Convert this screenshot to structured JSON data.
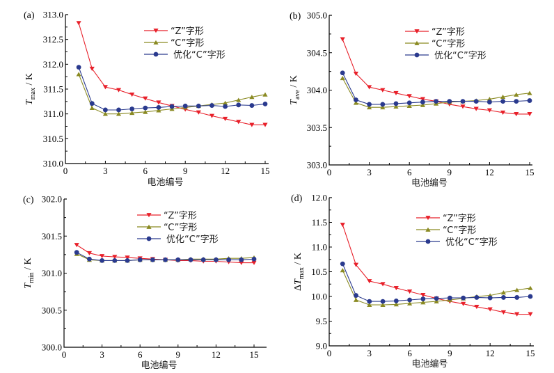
{
  "figure": {
    "legend_labels": [
      "“Z”字形",
      "“C”字形",
      "优化“C”字形"
    ],
    "series_colors": {
      "Z": "#e8202a",
      "C": "#8a8a22",
      "optC": "#2a3a8e"
    },
    "series_markers": {
      "Z": "triangle-down",
      "C": "triangle-up",
      "optC": "circle"
    }
  },
  "chart_data": [
    {
      "id": "a",
      "type": "line",
      "panel_label": "(a)",
      "title": "",
      "xlabel": "电池编号",
      "ylabel_main": "T",
      "ylabel_sub": "max",
      "ylabel_prefix": "",
      "ylabel_unit": " / K",
      "xlim": [
        0,
        16
      ],
      "ylim": [
        310.0,
        313.0
      ],
      "xticks": [
        0,
        3,
        6,
        9,
        12,
        15
      ],
      "xtick_labels": [
        "0",
        "3",
        "6",
        "9",
        "12",
        "15"
      ],
      "yticks": [
        310.0,
        310.5,
        311.0,
        311.5,
        312.0,
        312.5,
        313.0
      ],
      "ytick_labels": [
        "310.0",
        "310.5",
        "311.0",
        "311.5",
        "312.0",
        "312.5",
        "313.0"
      ],
      "grid": false,
      "legend_position": "top-right",
      "x": [
        1,
        2,
        3,
        4,
        5,
        6,
        7,
        8,
        9,
        10,
        11,
        12,
        13,
        14,
        15
      ],
      "series": [
        {
          "key": "Z",
          "name": "“Z”字形",
          "values": [
            312.83,
            311.91,
            311.54,
            311.48,
            311.39,
            311.31,
            311.23,
            311.16,
            311.09,
            311.03,
            310.96,
            310.9,
            310.84,
            310.78,
            310.78
          ]
        },
        {
          "key": "C",
          "name": "“C”字形",
          "values": [
            311.8,
            311.12,
            311.0,
            311.0,
            311.02,
            311.04,
            311.07,
            311.1,
            311.13,
            311.16,
            311.19,
            311.22,
            311.28,
            311.34,
            311.39
          ]
        },
        {
          "key": "optC",
          "name": "优化“C”字形",
          "values": [
            311.94,
            311.21,
            311.08,
            311.08,
            311.1,
            311.12,
            311.13,
            311.15,
            311.16,
            311.16,
            311.17,
            311.15,
            311.18,
            311.17,
            311.2
          ]
        }
      ]
    },
    {
      "id": "b",
      "type": "line",
      "panel_label": "(b)",
      "title": "",
      "xlabel": "电池编号",
      "ylabel_main": "T",
      "ylabel_sub": "ave",
      "ylabel_prefix": "",
      "ylabel_unit": " / K",
      "xlim": [
        0,
        15.2
      ],
      "ylim": [
        303.0,
        305.0
      ],
      "xticks": [
        0,
        3,
        6,
        9,
        12,
        15
      ],
      "xtick_labels": [
        "0",
        "3",
        "6",
        "9",
        "12",
        "15"
      ],
      "yticks": [
        303.0,
        303.5,
        304.0,
        304.5,
        305.0
      ],
      "ytick_labels": [
        "303.0",
        "303.5",
        "304.0",
        "304.5",
        "305.0"
      ],
      "grid": false,
      "legend_position": "top-right",
      "x": [
        1,
        2,
        3,
        4,
        5,
        6,
        7,
        8,
        9,
        10,
        11,
        12,
        13,
        14,
        15
      ],
      "series": [
        {
          "key": "Z",
          "name": "“Z”字形",
          "values": [
            304.68,
            304.22,
            304.04,
            304.0,
            303.96,
            303.92,
            303.88,
            303.85,
            303.81,
            303.78,
            303.75,
            303.73,
            303.7,
            303.68,
            303.68
          ]
        },
        {
          "key": "C",
          "name": "“C”字形",
          "values": [
            304.16,
            303.83,
            303.77,
            303.77,
            303.78,
            303.79,
            303.8,
            303.82,
            303.84,
            303.85,
            303.86,
            303.88,
            303.91,
            303.94,
            303.96
          ]
        },
        {
          "key": "optC",
          "name": "优化“C”字形",
          "values": [
            304.23,
            303.87,
            303.81,
            303.81,
            303.82,
            303.83,
            303.84,
            303.85,
            303.85,
            303.85,
            303.85,
            303.84,
            303.85,
            303.85,
            303.86
          ]
        }
      ]
    },
    {
      "id": "c",
      "type": "line",
      "panel_label": "(c)",
      "title": "",
      "xlabel": "电池编号",
      "ylabel_main": "T",
      "ylabel_sub": "min",
      "ylabel_prefix": "",
      "ylabel_unit": " / K",
      "xlim": [
        0,
        16
      ],
      "ylim": [
        300.0,
        302.0
      ],
      "xticks": [
        0,
        3,
        6,
        9,
        12,
        15
      ],
      "xtick_labels": [
        "0",
        "3",
        "6",
        "9",
        "12",
        "15"
      ],
      "yticks": [
        300.0,
        300.5,
        301.0,
        301.5,
        302.0
      ],
      "ytick_labels": [
        "300.0",
        "300.5",
        "301.0",
        "301.5",
        "302.0"
      ],
      "grid": false,
      "legend_position": "top-right",
      "x": [
        1,
        2,
        3,
        4,
        5,
        6,
        7,
        8,
        9,
        10,
        11,
        12,
        13,
        14,
        15
      ],
      "series": [
        {
          "key": "Z",
          "name": "“Z”字形",
          "values": [
            301.38,
            301.27,
            301.23,
            301.22,
            301.21,
            301.2,
            301.19,
            301.18,
            301.17,
            301.17,
            301.16,
            301.16,
            301.15,
            301.14,
            301.14
          ]
        },
        {
          "key": "C",
          "name": "“C”字形",
          "values": [
            301.26,
            301.18,
            301.17,
            301.17,
            301.17,
            301.18,
            301.18,
            301.18,
            301.18,
            301.19,
            301.19,
            301.19,
            301.2,
            301.2,
            301.21
          ]
        },
        {
          "key": "optC",
          "name": "优化“C”字形",
          "values": [
            301.28,
            301.19,
            301.17,
            301.17,
            301.17,
            301.18,
            301.18,
            301.18,
            301.18,
            301.18,
            301.18,
            301.18,
            301.18,
            301.18,
            301.19
          ]
        }
      ]
    },
    {
      "id": "d",
      "type": "line",
      "panel_label": "(d)",
      "title": "",
      "xlabel": "电池编号",
      "ylabel_main": "T",
      "ylabel_sub": "max",
      "ylabel_prefix": "Δ",
      "ylabel_unit": " / K",
      "xlim": [
        0,
        15.2
      ],
      "ylim": [
        9.0,
        12.0
      ],
      "xticks": [
        0,
        3,
        6,
        9,
        12,
        15
      ],
      "xtick_labels": [
        "0",
        "3",
        "6",
        "9",
        "12",
        "15"
      ],
      "yticks": [
        9.0,
        9.5,
        10.0,
        10.5,
        11.0,
        11.5,
        12.0
      ],
      "ytick_labels": [
        "9.0",
        "9.5",
        "10.0",
        "10.5",
        "11.0",
        "11.5",
        "12.0"
      ],
      "grid": false,
      "legend_position": "top-right",
      "x": [
        1,
        2,
        3,
        4,
        5,
        6,
        7,
        8,
        9,
        10,
        11,
        12,
        13,
        14,
        15
      ],
      "series": [
        {
          "key": "Z",
          "name": "“Z”字形",
          "values": [
            11.45,
            10.64,
            10.31,
            10.25,
            10.17,
            10.1,
            10.03,
            9.96,
            9.9,
            9.85,
            9.79,
            9.74,
            9.68,
            9.64,
            9.64
          ]
        },
        {
          "key": "C",
          "name": "“C”字形",
          "values": [
            10.53,
            9.93,
            9.83,
            9.83,
            9.84,
            9.86,
            9.88,
            9.9,
            9.93,
            9.96,
            10.0,
            10.02,
            10.08,
            10.13,
            10.17
          ]
        },
        {
          "key": "optC",
          "name": "优化“C”字形",
          "values": [
            10.66,
            10.02,
            9.9,
            9.9,
            9.91,
            9.93,
            9.95,
            9.96,
            9.97,
            9.97,
            9.98,
            9.97,
            9.98,
            9.98,
            10.0
          ]
        }
      ]
    }
  ]
}
